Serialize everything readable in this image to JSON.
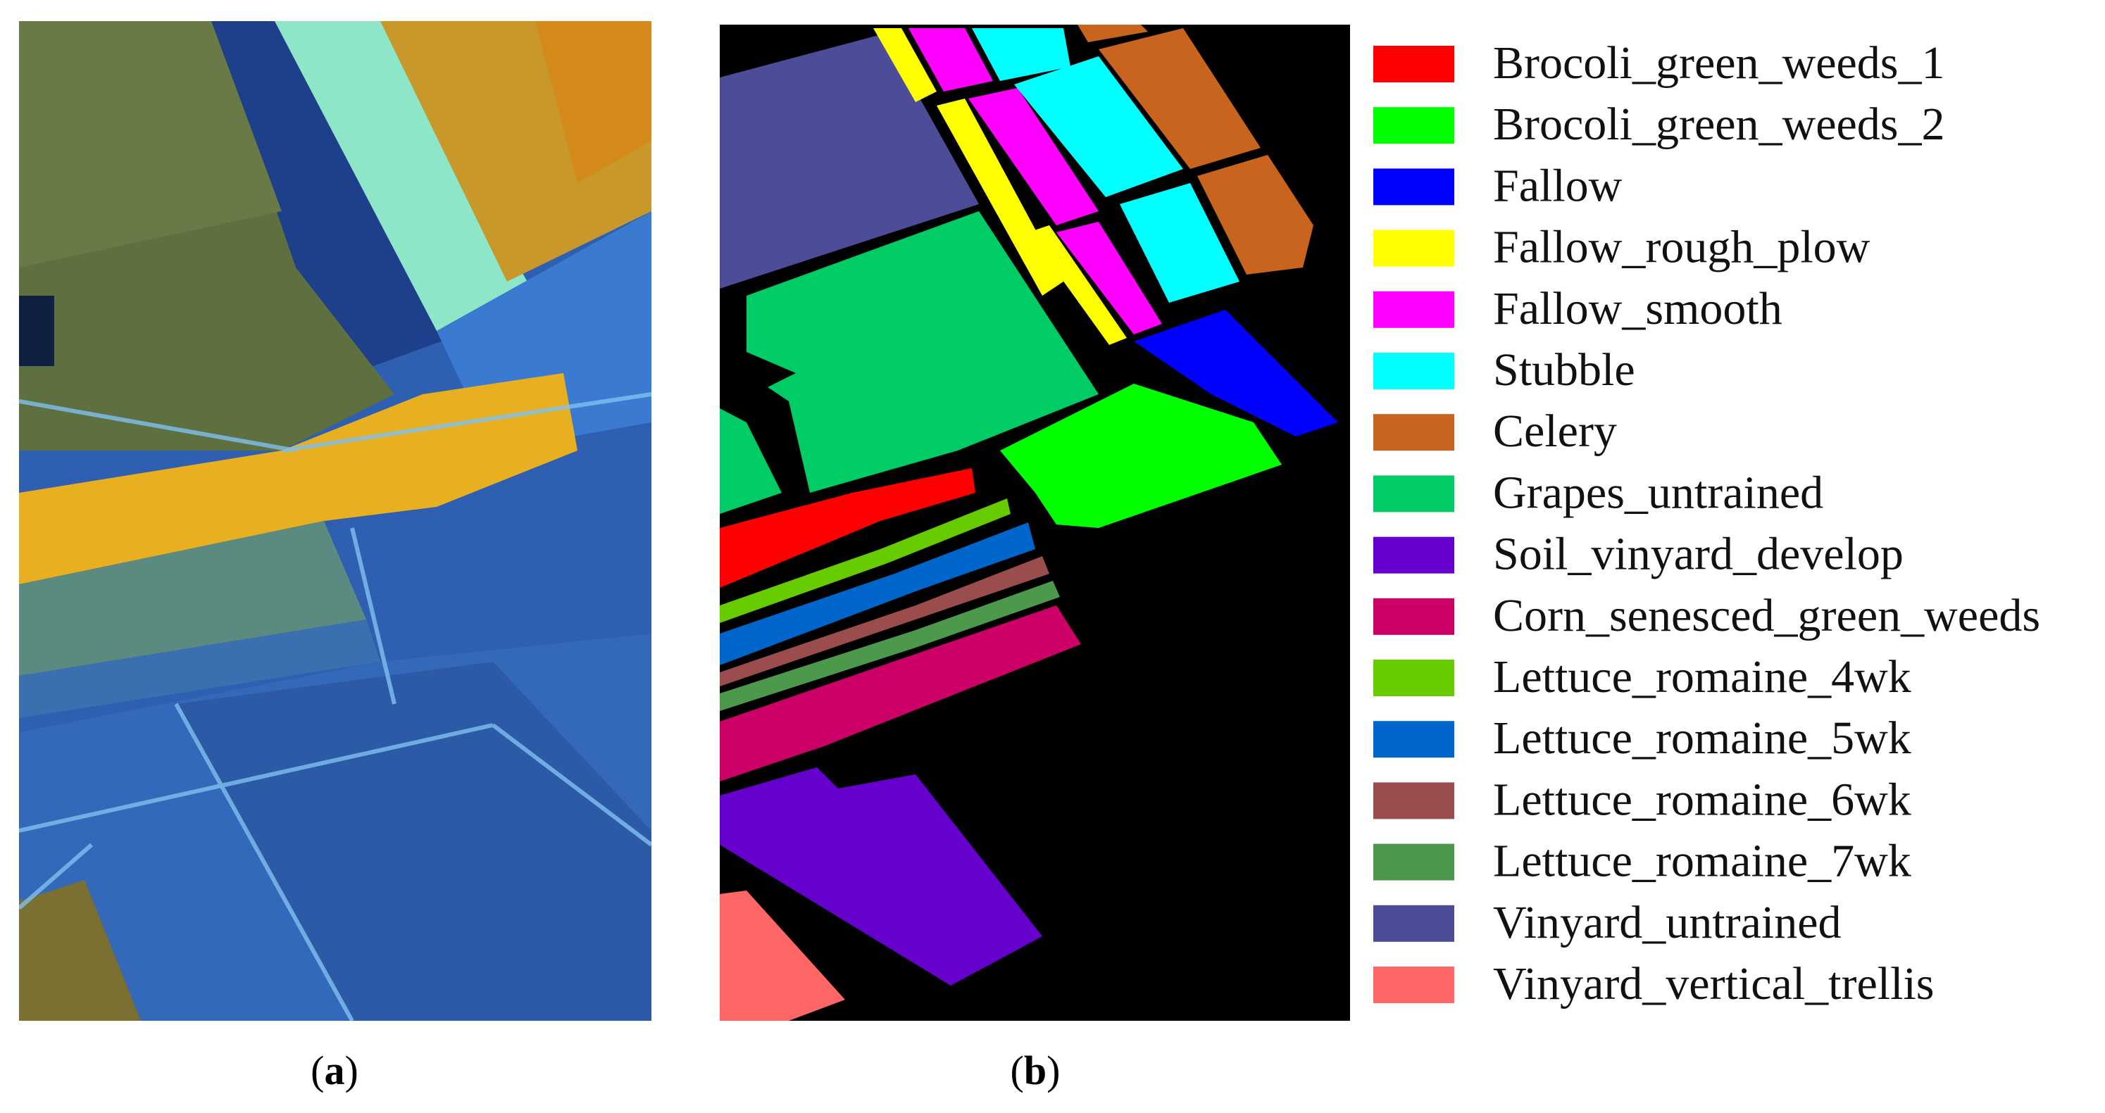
{
  "panels": {
    "a": {
      "open": "(",
      "letter": "a",
      "close": ")"
    },
    "b": {
      "open": "(",
      "letter": "b",
      "close": ")"
    }
  },
  "legend": [
    {
      "label": "Brocoli_green_weeds_1",
      "color": "#ff0000"
    },
    {
      "label": "Brocoli_green_weeds_2",
      "color": "#00ff00"
    },
    {
      "label": "Fallow",
      "color": "#0000ff"
    },
    {
      "label": "Fallow_rough_plow",
      "color": "#ffff00"
    },
    {
      "label": "Fallow_smooth",
      "color": "#ff00ff"
    },
    {
      "label": "Stubble",
      "color": "#00ffff"
    },
    {
      "label": "Celery",
      "color": "#c8641e"
    },
    {
      "label": "Grapes_untrained",
      "color": "#00cc66"
    },
    {
      "label": "Soil_vinyard_develop",
      "color": "#6600cc"
    },
    {
      "label": "Corn_senesced_green_weeds",
      "color": "#cc0066"
    },
    {
      "label": "Lettuce_romaine_4wk",
      "color": "#66cc00"
    },
    {
      "label": "Lettuce_romaine_5wk",
      "color": "#0066cc"
    },
    {
      "label": "Lettuce_romaine_6wk",
      "color": "#9b4c4c"
    },
    {
      "label": "Lettuce_romaine_7wk",
      "color": "#4c994c"
    },
    {
      "label": "Vinyard_untrained",
      "color": "#4c4c99"
    },
    {
      "label": "Vinyard_vertical_trellis",
      "color": "#ff6666"
    }
  ]
}
